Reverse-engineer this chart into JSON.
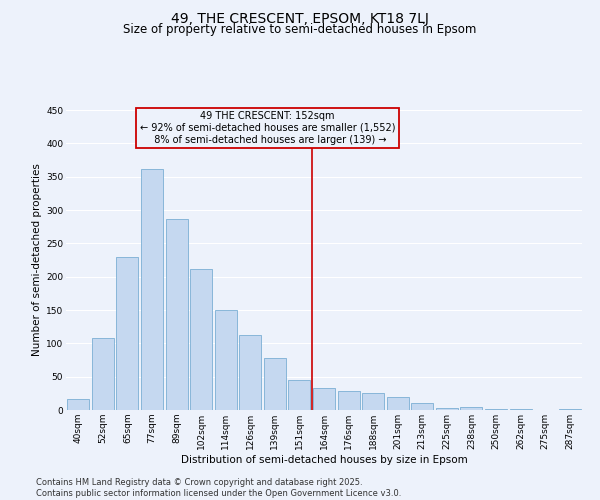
{
  "title": "49, THE CRESCENT, EPSOM, KT18 7LJ",
  "subtitle": "Size of property relative to semi-detached houses in Epsom",
  "xlabel": "Distribution of semi-detached houses by size in Epsom",
  "ylabel": "Number of semi-detached properties",
  "categories": [
    "40sqm",
    "52sqm",
    "65sqm",
    "77sqm",
    "89sqm",
    "102sqm",
    "114sqm",
    "126sqm",
    "139sqm",
    "151sqm",
    "164sqm",
    "176sqm",
    "188sqm",
    "201sqm",
    "213sqm",
    "225sqm",
    "238sqm",
    "250sqm",
    "262sqm",
    "275sqm",
    "287sqm"
  ],
  "values": [
    16,
    108,
    230,
    362,
    287,
    212,
    150,
    112,
    78,
    45,
    33,
    29,
    26,
    20,
    10,
    3,
    5,
    2,
    1,
    0,
    2
  ],
  "bar_color": "#c5d8f0",
  "bar_edge_color": "#7bafd4",
  "marker_label": "49 THE CRESCENT: 152sqm",
  "marker_pct_smaller": "92%",
  "marker_count_smaller": "1,552",
  "marker_pct_larger": "8%",
  "marker_count_larger": "139",
  "marker_color": "#cc0000",
  "annotation_box_color": "#cc0000",
  "ylim": [
    0,
    450
  ],
  "yticks": [
    0,
    50,
    100,
    150,
    200,
    250,
    300,
    350,
    400,
    450
  ],
  "bg_color": "#edf2fb",
  "grid_color": "#ffffff",
  "footer_line1": "Contains HM Land Registry data © Crown copyright and database right 2025.",
  "footer_line2": "Contains public sector information licensed under the Open Government Licence v3.0.",
  "title_fontsize": 10,
  "subtitle_fontsize": 8.5,
  "axis_label_fontsize": 7.5,
  "tick_fontsize": 6.5,
  "annotation_fontsize": 7,
  "footer_fontsize": 6,
  "bar_marker_index": 9
}
